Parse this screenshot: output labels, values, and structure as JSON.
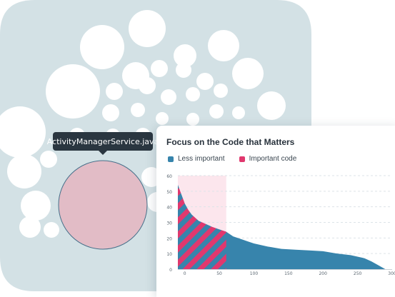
{
  "tooltip": {
    "label": "ActivityManagerService.java"
  },
  "colors": {
    "bubble_bg": "#d3e1e5",
    "bubble": "#ffffff",
    "highlight": "#e2bcc6",
    "less_important": "#3784ac",
    "important": "#e0386e",
    "hotspot_band": "#fce6ed"
  },
  "chart_data": {
    "type": "area",
    "title": "Focus on the Code that Matters",
    "xlabel": "",
    "ylabel": "",
    "xlim": [
      -10,
      300
    ],
    "ylim": [
      0,
      60
    ],
    "x_ticks": [
      0,
      50,
      100,
      150,
      200,
      250,
      300
    ],
    "y_ticks": [
      0,
      10,
      20,
      30,
      40,
      50,
      60
    ],
    "grid": true,
    "legend_position": "top-left",
    "legend": [
      {
        "name": "Less important",
        "color": "#3784ac"
      },
      {
        "name": "Important code",
        "color": "#e0386e"
      }
    ],
    "important_until_x": 60,
    "series": [
      {
        "x": [
          -10,
          -5,
          0,
          5,
          10,
          15,
          20,
          30,
          40,
          50,
          60,
          70,
          80,
          90,
          100,
          120,
          140,
          160,
          180,
          200,
          220,
          240,
          260,
          270,
          280,
          290
        ],
        "y": [
          54,
          48,
          42,
          38,
          35,
          33,
          31,
          29,
          27,
          25.5,
          24,
          21,
          19.5,
          18,
          16.5,
          14.5,
          13,
          12.5,
          12,
          11.5,
          10,
          9,
          7,
          5,
          2.5,
          0
        ]
      }
    ]
  }
}
